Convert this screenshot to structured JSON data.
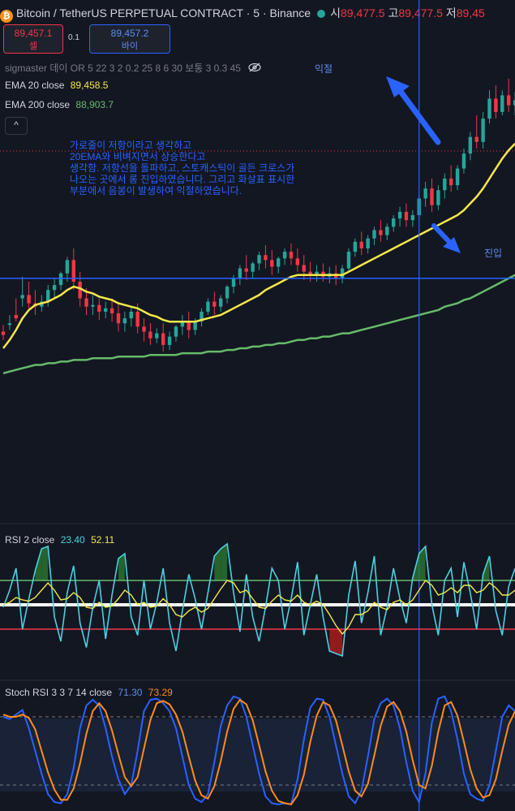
{
  "header": {
    "title": "Bitcoin / TetherUS PERPETUAL CONTRACT · 5 · Binance",
    "open_label": "시",
    "open_value": "89,477.5",
    "high_label": "고",
    "high_value": "89,477.5",
    "low_label": "저",
    "low_value": "89,45",
    "colors": {
      "up": "#26a69a",
      "down": "#f23645",
      "accent": "#2962ff"
    }
  },
  "trade": {
    "sell_price": "89,457.1",
    "sell_label": "셀",
    "spread": "0.1",
    "buy_price": "89,457.2",
    "buy_label": "바이"
  },
  "indicators": {
    "sigmaster": "sigmaster 데이 OR 5 22 3 2 0.2 25 8 6 30 보통 3 0.3 45",
    "ema20_label": "EMA 20 close",
    "ema20_value": "89,458.5",
    "ema200_label": "EMA 200 close",
    "ema200_value": "88,903.7",
    "collapse_icon": "chevron-up-icon",
    "hide_icon": "eye-off-icon"
  },
  "annotations": {
    "note": [
      "가로줄이 저항이라고 생각하고",
      "20EMA와 비벼지면서 상승한다고",
      "생각함. 저항선을 돌파하고, 스토캐스틱이 골든 크로스가",
      "나오는 곳에서 롱 진입하였습니다. 그리고 화살표 표시한",
      "부분에서 음봉이 발생하여 익절하였습니다."
    ],
    "take_profit": "익절",
    "entry": "진입"
  },
  "rsi": {
    "label": "RSI 2 close",
    "value1": "23.40",
    "value2": "52.11"
  },
  "stoch": {
    "label": "Stoch RSI 3 3 7 14 close",
    "k": "71.30",
    "d": "73.29"
  },
  "chart_data": [
    {
      "type": "candlestick",
      "title": "Bitcoin / TetherUS PERPETUAL CONTRACT · 5 · Binance",
      "candles": [
        [
          0.3,
          0.34,
          0.28,
          0.25
        ],
        [
          0.34,
          0.4,
          0.35,
          0.31
        ],
        [
          0.4,
          0.5,
          0.38,
          0.36
        ],
        [
          0.5,
          0.63,
          0.52,
          0.45
        ],
        [
          0.52,
          0.6,
          0.47,
          0.44
        ],
        [
          0.47,
          0.55,
          0.45,
          0.4
        ],
        [
          0.45,
          0.52,
          0.48,
          0.42
        ],
        [
          0.48,
          0.58,
          0.55,
          0.45
        ],
        [
          0.55,
          0.62,
          0.58,
          0.5
        ],
        [
          0.58,
          0.66,
          0.65,
          0.55
        ],
        [
          0.65,
          0.75,
          0.73,
          0.6
        ],
        [
          0.73,
          0.8,
          0.6,
          0.55
        ],
        [
          0.6,
          0.66,
          0.5,
          0.45
        ],
        [
          0.5,
          0.56,
          0.45,
          0.4
        ],
        [
          0.45,
          0.52,
          0.46,
          0.4
        ],
        [
          0.46,
          0.5,
          0.42,
          0.37
        ],
        [
          0.42,
          0.48,
          0.44,
          0.38
        ],
        [
          0.44,
          0.5,
          0.41,
          0.36
        ],
        [
          0.41,
          0.47,
          0.35,
          0.3
        ],
        [
          0.35,
          0.42,
          0.38,
          0.3
        ],
        [
          0.38,
          0.45,
          0.42,
          0.33
        ],
        [
          0.42,
          0.47,
          0.33,
          0.29
        ],
        [
          0.33,
          0.38,
          0.3,
          0.24
        ],
        [
          0.3,
          0.35,
          0.26,
          0.22
        ],
        [
          0.26,
          0.32,
          0.29,
          0.23
        ],
        [
          0.29,
          0.35,
          0.22,
          0.18
        ],
        [
          0.22,
          0.3,
          0.27,
          0.19
        ],
        [
          0.27,
          0.34,
          0.33,
          0.24
        ],
        [
          0.33,
          0.4,
          0.36,
          0.28
        ],
        [
          0.36,
          0.42,
          0.31,
          0.26
        ],
        [
          0.31,
          0.38,
          0.36,
          0.28
        ],
        [
          0.36,
          0.44,
          0.42,
          0.33
        ],
        [
          0.42,
          0.5,
          0.48,
          0.4
        ],
        [
          0.48,
          0.54,
          0.45,
          0.4
        ],
        [
          0.45,
          0.52,
          0.5,
          0.42
        ],
        [
          0.5,
          0.58,
          0.57,
          0.47
        ],
        [
          0.57,
          0.64,
          0.62,
          0.53
        ],
        [
          0.62,
          0.7,
          0.68,
          0.58
        ],
        [
          0.68,
          0.76,
          0.66,
          0.61
        ],
        [
          0.66,
          0.72,
          0.71,
          0.62
        ],
        [
          0.71,
          0.78,
          0.76,
          0.67
        ],
        [
          0.76,
          0.82,
          0.73,
          0.68
        ],
        [
          0.73,
          0.79,
          0.69,
          0.64
        ],
        [
          0.69,
          0.75,
          0.74,
          0.65
        ],
        [
          0.74,
          0.8,
          0.78,
          0.7
        ],
        [
          0.78,
          0.83,
          0.74,
          0.7
        ],
        [
          0.74,
          0.8,
          0.7,
          0.66
        ],
        [
          0.7,
          0.76,
          0.66,
          0.61
        ],
        [
          0.66,
          0.72,
          0.64,
          0.6
        ],
        [
          0.64,
          0.7,
          0.66,
          0.6
        ],
        [
          0.66,
          0.71,
          0.63,
          0.6
        ],
        [
          0.63,
          0.69,
          0.65,
          0.59
        ],
        [
          0.65,
          0.7,
          0.62,
          0.58
        ],
        [
          0.62,
          0.7,
          0.68,
          0.59
        ],
        [
          0.68,
          0.8,
          0.78,
          0.66
        ],
        [
          0.78,
          0.86,
          0.84,
          0.75
        ],
        [
          0.84,
          0.9,
          0.8,
          0.76
        ],
        [
          0.8,
          0.88,
          0.86,
          0.77
        ],
        [
          0.86,
          0.93,
          0.91,
          0.82
        ],
        [
          0.91,
          0.97,
          0.88,
          0.84
        ],
        [
          0.88,
          0.95,
          0.93,
          0.85
        ],
        [
          0.93,
          1.0,
          0.98,
          0.9
        ],
        [
          0.98,
          1.05,
          1.02,
          0.93
        ],
        [
          1.02,
          1.07,
          0.97,
          0.93
        ],
        [
          0.97,
          1.03,
          1.0,
          0.93
        ],
        [
          1.0,
          1.12,
          1.1,
          0.98
        ],
        [
          1.1,
          1.2,
          1.16,
          1.05
        ],
        [
          1.16,
          1.22,
          1.06,
          1.02
        ],
        [
          1.06,
          1.18,
          1.15,
          1.03
        ],
        [
          1.15,
          1.25,
          1.22,
          1.1
        ],
        [
          1.22,
          1.3,
          1.18,
          1.14
        ],
        [
          1.18,
          1.3,
          1.28,
          1.15
        ],
        [
          1.28,
          1.4,
          1.37,
          1.25
        ],
        [
          1.37,
          1.5,
          1.47,
          1.33
        ],
        [
          1.47,
          1.6,
          1.44,
          1.4
        ],
        [
          1.44,
          1.62,
          1.58,
          1.4
        ],
        [
          1.58,
          1.75,
          1.7,
          1.55
        ],
        [
          1.7,
          1.78,
          1.62,
          1.58
        ],
        [
          1.62,
          1.75,
          1.72,
          1.6
        ],
        [
          1.72,
          1.82,
          1.66,
          1.62
        ],
        [
          1.66,
          1.74,
          1.69,
          1.6
        ]
      ],
      "ema20": [
        0.2,
        0.25,
        0.31,
        0.38,
        0.43,
        0.46,
        0.47,
        0.48,
        0.5,
        0.52,
        0.55,
        0.57,
        0.56,
        0.54,
        0.53,
        0.51,
        0.5,
        0.49,
        0.47,
        0.46,
        0.45,
        0.44,
        0.42,
        0.4,
        0.39,
        0.37,
        0.36,
        0.36,
        0.36,
        0.36,
        0.36,
        0.37,
        0.38,
        0.39,
        0.4,
        0.42,
        0.44,
        0.46,
        0.48,
        0.5,
        0.52,
        0.55,
        0.57,
        0.59,
        0.61,
        0.63,
        0.64,
        0.64,
        0.64,
        0.64,
        0.64,
        0.64,
        0.64,
        0.64,
        0.66,
        0.68,
        0.7,
        0.72,
        0.74,
        0.76,
        0.78,
        0.8,
        0.82,
        0.84,
        0.86,
        0.88,
        0.9,
        0.92,
        0.94,
        0.96,
        0.98,
        1.0,
        1.03,
        1.07,
        1.11,
        1.16,
        1.22,
        1.28,
        1.34,
        1.39,
        1.43
      ],
      "ema200": [
        0.05,
        0.06,
        0.07,
        0.08,
        0.09,
        0.1,
        0.1,
        0.11,
        0.11,
        0.12,
        0.12,
        0.13,
        0.13,
        0.13,
        0.14,
        0.14,
        0.14,
        0.14,
        0.15,
        0.15,
        0.15,
        0.15,
        0.15,
        0.16,
        0.16,
        0.16,
        0.16,
        0.16,
        0.17,
        0.17,
        0.17,
        0.17,
        0.18,
        0.18,
        0.18,
        0.19,
        0.19,
        0.2,
        0.2,
        0.21,
        0.21,
        0.22,
        0.22,
        0.23,
        0.23,
        0.24,
        0.25,
        0.25,
        0.26,
        0.26,
        0.27,
        0.27,
        0.28,
        0.29,
        0.29,
        0.3,
        0.31,
        0.32,
        0.33,
        0.34,
        0.35,
        0.36,
        0.37,
        0.38,
        0.39,
        0.4,
        0.41,
        0.42,
        0.43,
        0.45,
        0.46,
        0.47,
        0.49,
        0.5,
        0.52,
        0.54,
        0.56,
        0.58,
        0.6,
        0.62,
        0.64
      ],
      "resistance": 0.62,
      "marker_index": 65
    },
    {
      "type": "line",
      "title": "RSI 2 close",
      "rsi_fast": [
        48,
        62,
        80,
        30,
        55,
        78,
        96,
        98,
        40,
        20,
        60,
        82,
        35,
        15,
        48,
        70,
        22,
        58,
        88,
        92,
        40,
        25,
        70,
        30,
        52,
        80,
        35,
        12,
        45,
        75,
        55,
        30,
        60,
        90,
        96,
        100,
        60,
        28,
        75,
        40,
        20,
        48,
        80,
        70,
        30,
        55,
        85,
        25,
        50,
        75,
        40,
        12,
        10,
        8,
        58,
        86,
        35,
        60,
        90,
        25,
        48,
        80,
        55,
        35,
        72,
        92,
        98,
        50,
        25,
        70,
        80,
        40,
        85,
        60,
        30,
        75,
        90,
        45,
        25,
        65,
        80
      ],
      "rsi_slow": [
        50,
        52,
        56,
        54,
        53,
        56,
        62,
        68,
        62,
        54,
        55,
        60,
        56,
        48,
        47,
        52,
        48,
        49,
        55,
        62,
        58,
        50,
        52,
        48,
        49,
        55,
        50,
        42,
        40,
        45,
        48,
        44,
        47,
        55,
        63,
        70,
        68,
        60,
        62,
        55,
        48,
        47,
        53,
        58,
        54,
        53,
        58,
        52,
        50,
        53,
        50,
        42,
        33,
        26,
        32,
        42,
        42,
        45,
        52,
        48,
        46,
        52,
        54,
        50,
        54,
        62,
        70,
        66,
        58,
        60,
        64,
        60,
        66,
        66,
        60,
        62,
        68,
        64,
        58,
        58,
        62
      ],
      "upper": 70,
      "lower": 30,
      "mid": 50
    },
    {
      "type": "line",
      "title": "Stoch RSI 3 3 7 14 close",
      "k": [
        80,
        78,
        82,
        86,
        70,
        50,
        30,
        12,
        5,
        4,
        12,
        35,
        70,
        90,
        95,
        90,
        70,
        45,
        25,
        12,
        20,
        50,
        85,
        95,
        96,
        92,
        85,
        70,
        45,
        20,
        8,
        5,
        12,
        40,
        72,
        90,
        98,
        96,
        80,
        55,
        30,
        10,
        4,
        3,
        4,
        3,
        25,
        60,
        88,
        96,
        95,
        80,
        55,
        30,
        10,
        4,
        15,
        45,
        78,
        92,
        96,
        90,
        70,
        40,
        15,
        5,
        30,
        75,
        96,
        98,
        85,
        60,
        30,
        12,
        8,
        6,
        20,
        50,
        80,
        90,
        85
      ],
      "d": [
        82,
        80,
        80,
        82,
        79,
        69,
        50,
        31,
        16,
        7,
        7,
        17,
        39,
        65,
        85,
        92,
        85,
        68,
        47,
        27,
        19,
        27,
        52,
        77,
        92,
        94,
        91,
        82,
        67,
        45,
        24,
        11,
        8,
        19,
        41,
        67,
        87,
        95,
        91,
        77,
        55,
        32,
        15,
        6,
        4,
        3,
        11,
        29,
        58,
        81,
        93,
        90,
        77,
        55,
        32,
        15,
        10,
        21,
        46,
        72,
        89,
        93,
        85,
        67,
        42,
        20,
        17,
        37,
        67,
        90,
        93,
        81,
        58,
        34,
        17,
        9,
        11,
        25,
        50,
        73,
        85
      ],
      "upper": 80,
      "lower": 20
    }
  ]
}
